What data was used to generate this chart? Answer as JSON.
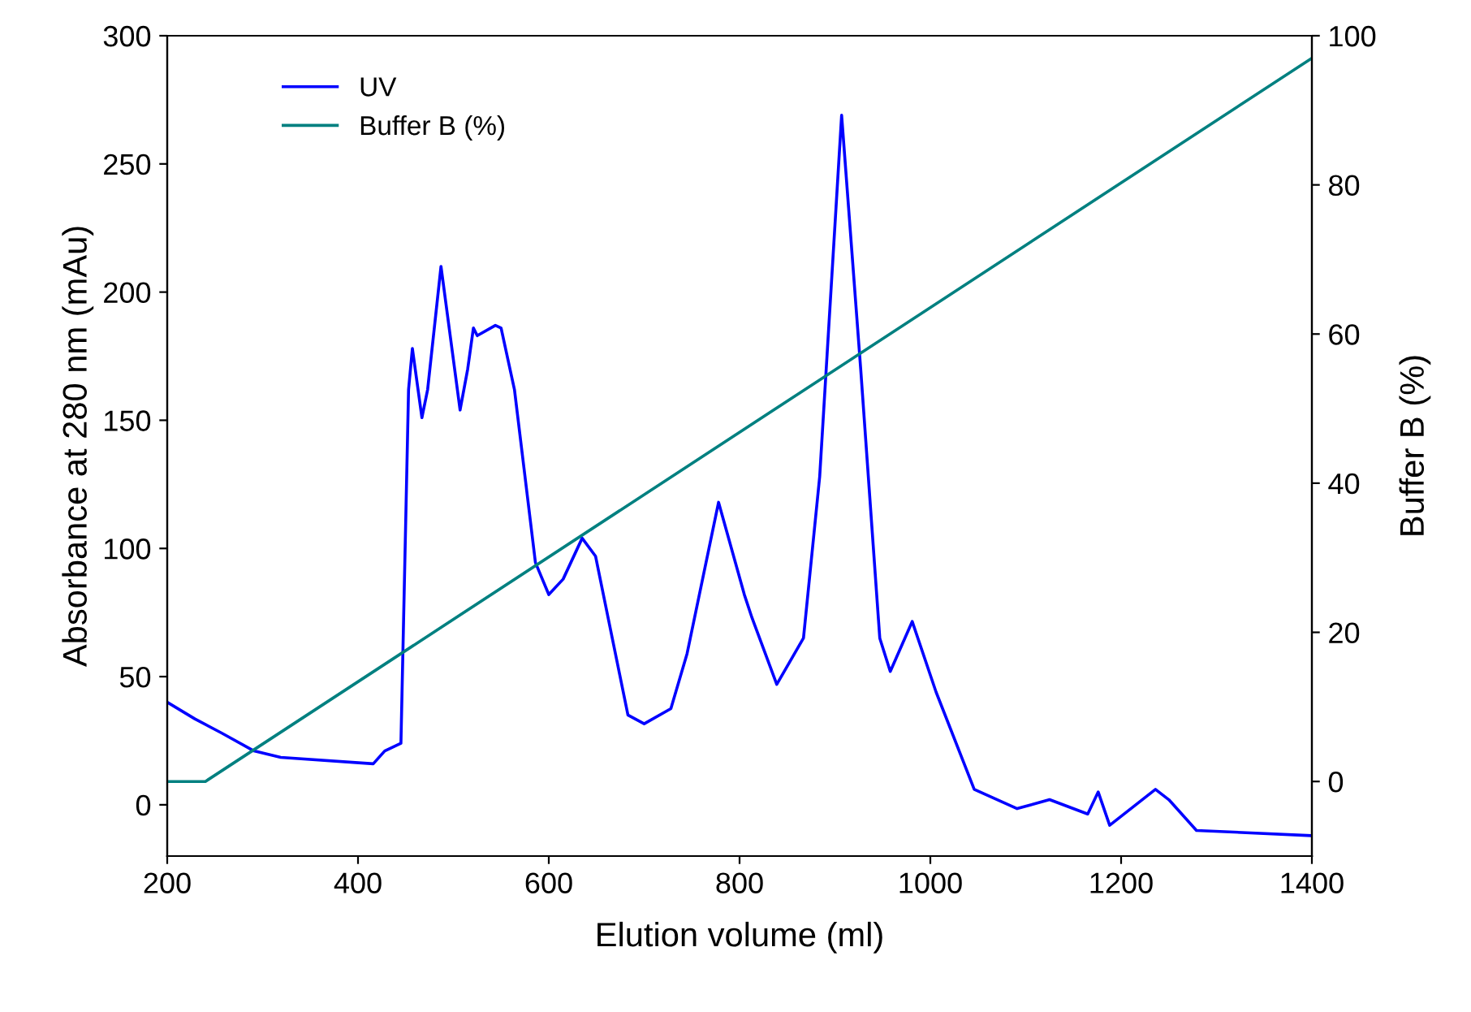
{
  "chart_data": {
    "type": "line",
    "xlabel": "Elution volume (ml)",
    "ylabel": "Absorbance at 280 nm (mAu)",
    "y2label": "Buffer B (%)",
    "xlim": [
      200,
      1400
    ],
    "xticks": [
      200,
      400,
      600,
      800,
      1000,
      1200,
      1400
    ],
    "ylim": [
      -20,
      300
    ],
    "yticks": [
      0,
      50,
      100,
      150,
      200,
      250,
      300
    ],
    "y2lim": [
      -10,
      100
    ],
    "y2ticks": [
      0,
      20,
      40,
      60,
      80,
      100
    ],
    "grid": false,
    "legend": "top left",
    "marker": "none",
    "line_style": "solid",
    "series": [
      {
        "name": "UV",
        "color": "#0000ff",
        "x": [
          200,
          229,
          257,
          291,
          319,
          416,
          428,
          445,
          453,
          457,
          467,
          473,
          487,
          507,
          515,
          521,
          525,
          544,
          550,
          564,
          586,
          600,
          615,
          635,
          649,
          683,
          700,
          728,
          745,
          778,
          805,
          813,
          839,
          867,
          884,
          907,
          927,
          947,
          958,
          981,
          1006,
          1046,
          1091,
          1125,
          1165,
          1176,
          1188,
          1236,
          1250,
          1279,
          1398
        ],
        "values": [
          40,
          33.5,
          28,
          21,
          18.5,
          16,
          21,
          24,
          162,
          178,
          151,
          162,
          210,
          154,
          170,
          186,
          183,
          187,
          186,
          162,
          94.5,
          82,
          88,
          104,
          97,
          35,
          31.6,
          37.5,
          59,
          118,
          82,
          73,
          47,
          65,
          128,
          269,
          170,
          65,
          52,
          71.5,
          44,
          6,
          -1.5,
          2,
          -3.6,
          5,
          -8,
          6,
          2,
          -10,
          -12
        ]
      },
      {
        "name": "Buffer B (%)",
        "color": "#008080",
        "axis": "y2",
        "x": [
          200,
          240,
          1400
        ],
        "values": [
          0,
          0,
          97
        ]
      }
    ]
  }
}
